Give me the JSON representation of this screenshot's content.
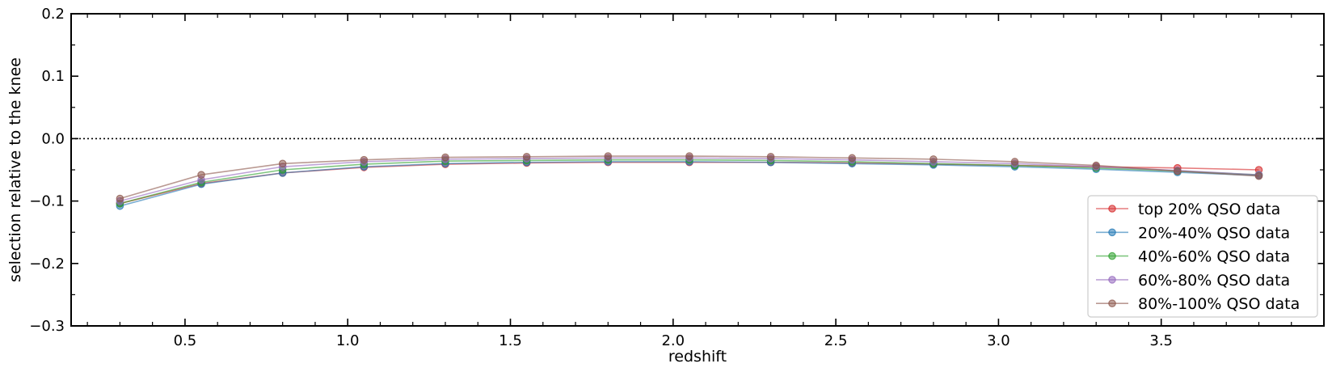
{
  "chart_data": {
    "type": "line",
    "xlabel": "redshift",
    "ylabel": "selection relative to the knee",
    "xlim": [
      0.15,
      4.0
    ],
    "ylim": [
      -0.3,
      0.2
    ],
    "x_ticks": [
      0.5,
      1.0,
      1.5,
      2.0,
      2.5,
      3.0,
      3.5
    ],
    "x_tick_labels": [
      "0.5",
      "1.0",
      "1.5",
      "2.0",
      "2.5",
      "3.0",
      "3.5"
    ],
    "y_ticks": [
      -0.3,
      -0.2,
      -0.1,
      0.0,
      0.1,
      0.2
    ],
    "y_tick_labels": [
      "−0.3",
      "−0.2",
      "−0.1",
      "0.0",
      "0.1",
      "0.2"
    ],
    "reference_line": {
      "y": 0.0,
      "style": "dotted"
    },
    "grid": false,
    "legend_position": "lower-right",
    "x": [
      0.3,
      0.55,
      0.8,
      1.05,
      1.3,
      1.55,
      1.8,
      2.05,
      2.3,
      2.55,
      2.8,
      3.05,
      3.3,
      3.55,
      3.8
    ],
    "series": [
      {
        "name": "top 20% QSO data",
        "color": "#d62728",
        "values": [
          -0.104,
          -0.072,
          -0.055,
          -0.046,
          -0.041,
          -0.039,
          -0.038,
          -0.038,
          -0.038,
          -0.039,
          -0.041,
          -0.043,
          -0.045,
          -0.047,
          -0.05
        ]
      },
      {
        "name": "20%-40% QSO data",
        "color": "#1f77b4",
        "values": [
          -0.108,
          -0.073,
          -0.055,
          -0.045,
          -0.04,
          -0.038,
          -0.037,
          -0.037,
          -0.038,
          -0.04,
          -0.042,
          -0.045,
          -0.049,
          -0.054,
          -0.059
        ]
      },
      {
        "name": "40%-60% QSO data",
        "color": "#2ca02c",
        "values": [
          -0.104,
          -0.07,
          -0.05,
          -0.041,
          -0.036,
          -0.035,
          -0.034,
          -0.034,
          -0.035,
          -0.037,
          -0.04,
          -0.043,
          -0.047,
          -0.052,
          -0.058
        ]
      },
      {
        "name": "60%-80% QSO data",
        "color": "#9467bd",
        "values": [
          -0.1,
          -0.066,
          -0.045,
          -0.037,
          -0.033,
          -0.032,
          -0.031,
          -0.031,
          -0.032,
          -0.034,
          -0.037,
          -0.04,
          -0.045,
          -0.051,
          -0.058
        ]
      },
      {
        "name": "80%-100% QSO data",
        "color": "#8c564b",
        "values": [
          -0.096,
          -0.058,
          -0.04,
          -0.034,
          -0.03,
          -0.029,
          -0.028,
          -0.028,
          -0.029,
          -0.031,
          -0.033,
          -0.037,
          -0.043,
          -0.052,
          -0.06
        ]
      }
    ]
  }
}
